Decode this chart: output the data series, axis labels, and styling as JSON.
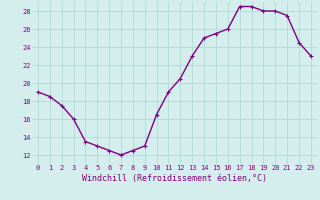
{
  "x": [
    0,
    1,
    2,
    3,
    4,
    5,
    6,
    7,
    8,
    9,
    10,
    11,
    12,
    13,
    14,
    15,
    16,
    17,
    18,
    19,
    20,
    21,
    22,
    23
  ],
  "y": [
    19.0,
    18.5,
    17.5,
    16.0,
    13.5,
    13.0,
    12.5,
    12.0,
    12.5,
    13.0,
    16.5,
    19.0,
    20.5,
    23.0,
    25.0,
    25.5,
    26.0,
    28.5,
    28.5,
    28.0,
    28.0,
    27.5,
    24.5,
    23.0
  ],
  "line_color": "#800080",
  "marker": "+",
  "marker_size": 3,
  "background_color": "#d4eeed",
  "grid_color": "#b0d8d8",
  "xlabel": "Windchill (Refroidissement éolien,°C)",
  "xlabel_color": "#800080",
  "tick_color": "#800080",
  "ylim": [
    11,
    29
  ],
  "yticks": [
    12,
    14,
    16,
    18,
    20,
    22,
    24,
    26,
    28
  ],
  "xticks": [
    0,
    1,
    2,
    3,
    4,
    5,
    6,
    7,
    8,
    9,
    10,
    11,
    12,
    13,
    14,
    15,
    16,
    17,
    18,
    19,
    20,
    21,
    22,
    23
  ],
  "line_width": 1.0,
  "marker_color": "#800080",
  "tick_fontsize": 5.0,
  "xlabel_fontsize": 6.0
}
